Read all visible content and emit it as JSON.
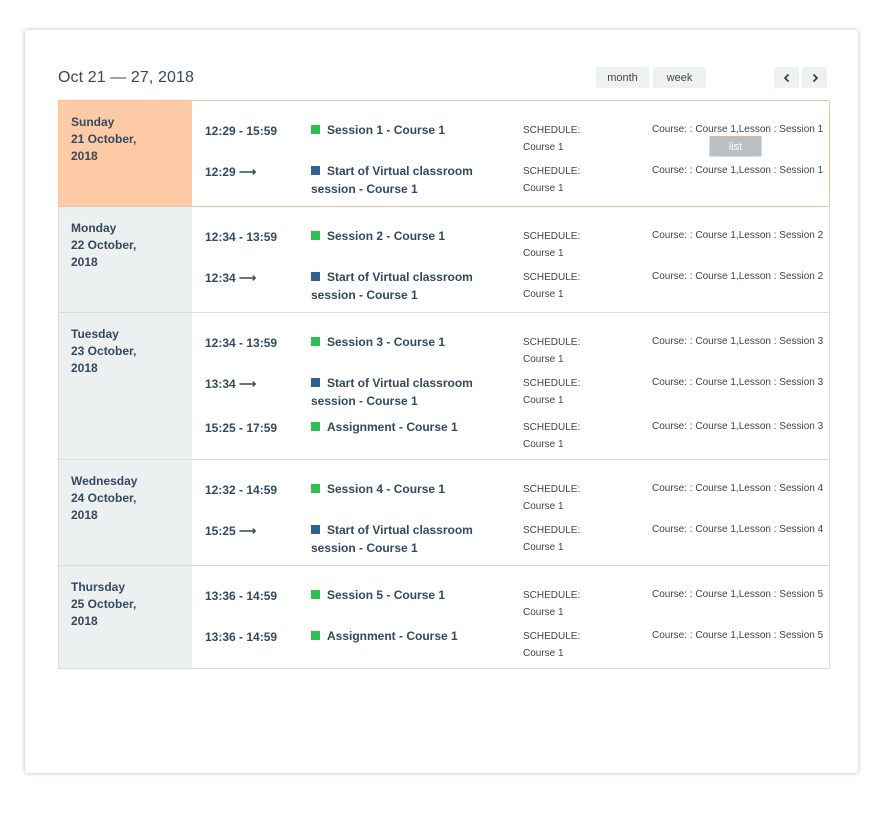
{
  "header": {
    "range_title": "Oct 21 — 27, 2018",
    "buttons": {
      "month": "month",
      "week": "week",
      "list": "list"
    }
  },
  "colors": {
    "session": "#2dbf4f",
    "virtual": "#2e6391",
    "today_bg": "#fecba6",
    "day_bg": "#ecf0f0"
  },
  "days": [
    {
      "weekday": "Sunday",
      "date": "21 October,",
      "year": "2018",
      "today": true,
      "events": [
        {
          "time": "12:29 - 15:59",
          "title": "Session 1 - Course 1",
          "type": "session",
          "schedule_label": "SCHEDULE:",
          "schedule_value": "Course 1",
          "course": "Course: : Course 1,Lesson : Session 1"
        },
        {
          "time": "12:29 ⟶",
          "title": "Start of Virtual classroom session - Course 1",
          "type": "virtual",
          "schedule_label": "SCHEDULE:",
          "schedule_value": "Course 1",
          "course": "Course: : Course 1,Lesson : Session 1"
        }
      ]
    },
    {
      "weekday": "Monday",
      "date": "22 October,",
      "year": "2018",
      "today": false,
      "events": [
        {
          "time": "12:34 - 13:59",
          "title": "Session 2 - Course 1",
          "type": "session",
          "schedule_label": "SCHEDULE:",
          "schedule_value": "Course 1",
          "course": "Course: : Course 1,Lesson : Session 2"
        },
        {
          "time": "12:34 ⟶",
          "title": "Start of Virtual classroom session - Course 1",
          "type": "virtual",
          "schedule_label": "SCHEDULE:",
          "schedule_value": "Course 1",
          "course": "Course: : Course 1,Lesson : Session 2"
        }
      ]
    },
    {
      "weekday": "Tuesday",
      "date": "23 October,",
      "year": "2018",
      "today": false,
      "events": [
        {
          "time": "12:34 - 13:59",
          "title": "Session 3 - Course 1",
          "type": "session",
          "schedule_label": "SCHEDULE:",
          "schedule_value": "Course 1",
          "course": "Course: : Course 1,Lesson : Session 3"
        },
        {
          "time": "13:34 ⟶",
          "title": "Start of Virtual classroom session - Course 1",
          "type": "virtual",
          "schedule_label": "SCHEDULE:",
          "schedule_value": "Course 1",
          "course": "Course: : Course 1,Lesson : Session 3"
        },
        {
          "time": "15:25 - 17:59",
          "title": "Assignment - Course 1",
          "type": "session",
          "schedule_label": "SCHEDULE:",
          "schedule_value": "Course 1",
          "course": "Course: : Course 1,Lesson : Session 3"
        }
      ]
    },
    {
      "weekday": "Wednesday",
      "date": "24 October,",
      "year": "2018",
      "today": false,
      "events": [
        {
          "time": "12:32 - 14:59",
          "title": "Session 4 - Course 1",
          "type": "session",
          "schedule_label": "SCHEDULE:",
          "schedule_value": "Course 1",
          "course": "Course: : Course 1,Lesson : Session 4"
        },
        {
          "time": "15:25 ⟶",
          "title": "Start of Virtual classroom session - Course 1",
          "type": "virtual",
          "schedule_label": "SCHEDULE:",
          "schedule_value": "Course 1",
          "course": "Course: : Course 1,Lesson : Session 4"
        }
      ]
    },
    {
      "weekday": "Thursday",
      "date": "25 October,",
      "year": "2018",
      "today": false,
      "events": [
        {
          "time": "13:36 - 14:59",
          "title": "Session 5 - Course 1",
          "type": "session",
          "schedule_label": "SCHEDULE:",
          "schedule_value": "Course 1",
          "course": "Course: : Course 1,Lesson : Session 5"
        },
        {
          "time": "13:36 - 14:59",
          "title": "Assignment - Course 1",
          "type": "session",
          "schedule_label": "SCHEDULE:",
          "schedule_value": "Course 1",
          "course": "Course: : Course 1,Lesson : Session 5"
        }
      ]
    }
  ]
}
